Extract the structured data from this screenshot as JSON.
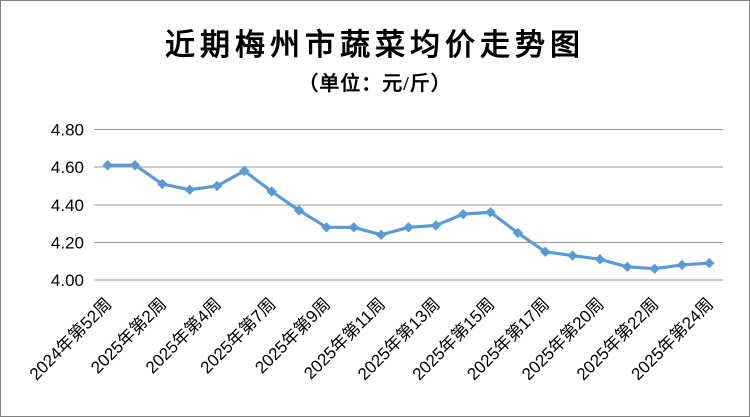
{
  "window": {
    "background_color": "#ffffff",
    "border_color": "#808080"
  },
  "chart_data": {
    "type": "line",
    "title": "近期梅州市蔬菜均价走势图",
    "subtitle": "（单位：元/斤）",
    "unit": "元/斤",
    "values": [
      4.61,
      4.61,
      4.51,
      4.48,
      4.5,
      4.58,
      4.47,
      4.37,
      4.28,
      4.28,
      4.24,
      4.28,
      4.29,
      4.35,
      4.36,
      4.25,
      4.15,
      4.13,
      4.11,
      4.07,
      4.06,
      4.08,
      4.09
    ],
    "x_tick_labels": [
      "2024年第52周",
      "2025年第2周",
      "2025年第4周",
      "2025年第7周",
      "2025年第9周",
      "2025年第11周",
      "2025年第13周",
      "2025年第15周",
      "2025年第17周",
      "2025年第20周",
      "2025年第22周",
      "2025年第24周"
    ],
    "label_interval": 2,
    "y_tick_labels": [
      "4.80",
      "4.60",
      "4.40",
      "4.20",
      "4.00"
    ],
    "ylim": [
      4.0,
      4.8
    ],
    "grid": true,
    "legend": "none",
    "x_label_rotation_deg": -45,
    "line_color": "#5B9BD5",
    "marker": "diamond",
    "marker_color": "#5B9BD5",
    "gridline_color": "#999999"
  }
}
